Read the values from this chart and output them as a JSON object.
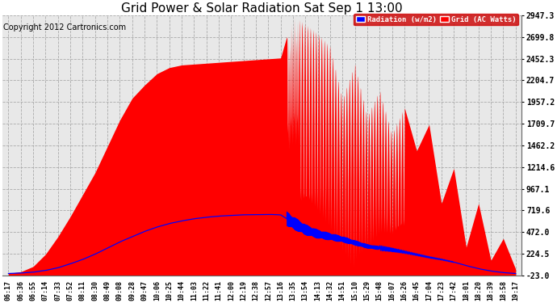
{
  "title": "Grid Power & Solar Radiation Sat Sep 1 13:00",
  "copyright": "Copyright 2012 Cartronics.com",
  "legend_labels": [
    "Radiation (w/m2)",
    "Grid (AC Watts)"
  ],
  "legend_colors": [
    "#0000ff",
    "#ff0000"
  ],
  "yticks": [
    -23.0,
    224.5,
    472.0,
    719.6,
    967.1,
    1214.6,
    1462.2,
    1709.7,
    1957.2,
    2204.7,
    2452.3,
    2699.8,
    2947.3
  ],
  "ymin": -23.0,
  "ymax": 2947.3,
  "background_color": "#ffffff",
  "plot_bg_color": "#e8e8e8",
  "grid_color": "#aaaaaa",
  "red_fill_color": "#ff0000",
  "blue_line_color": "#0000ff",
  "title_fontsize": 11,
  "copyright_fontsize": 7,
  "tick_fontsize": 7,
  "x_tick_labels": [
    "06:17",
    "06:36",
    "06:55",
    "07:14",
    "07:33",
    "07:52",
    "08:11",
    "08:30",
    "08:49",
    "09:08",
    "09:28",
    "09:47",
    "10:06",
    "10:25",
    "10:44",
    "11:03",
    "11:22",
    "11:41",
    "12:00",
    "12:19",
    "12:38",
    "12:57",
    "13:16",
    "13:35",
    "13:54",
    "14:13",
    "14:32",
    "14:51",
    "15:10",
    "15:29",
    "15:48",
    "16:07",
    "16:26",
    "16:45",
    "17:04",
    "17:23",
    "17:42",
    "18:01",
    "18:20",
    "18:39",
    "18:58",
    "19:17"
  ],
  "red_curve": [
    0,
    20,
    80,
    220,
    420,
    650,
    900,
    1150,
    1450,
    1750,
    2000,
    2150,
    2280,
    2350,
    2380,
    2390,
    2400,
    2410,
    2420,
    2430,
    2440,
    2450,
    2460,
    2947,
    2850,
    2750,
    2600,
    2000,
    2400,
    1800,
    2100,
    1600,
    1900,
    1400,
    1700,
    800,
    1200,
    300,
    800,
    150,
    400,
    50
  ],
  "red_curve_dense_spikes": true,
  "blue_curve": [
    0,
    5,
    15,
    35,
    65,
    110,
    160,
    220,
    290,
    360,
    420,
    480,
    530,
    570,
    600,
    625,
    642,
    655,
    663,
    670,
    672,
    675,
    670,
    580,
    500,
    450,
    420,
    390,
    350,
    310,
    290,
    270,
    245,
    215,
    185,
    160,
    130,
    90,
    55,
    28,
    10,
    0
  ]
}
